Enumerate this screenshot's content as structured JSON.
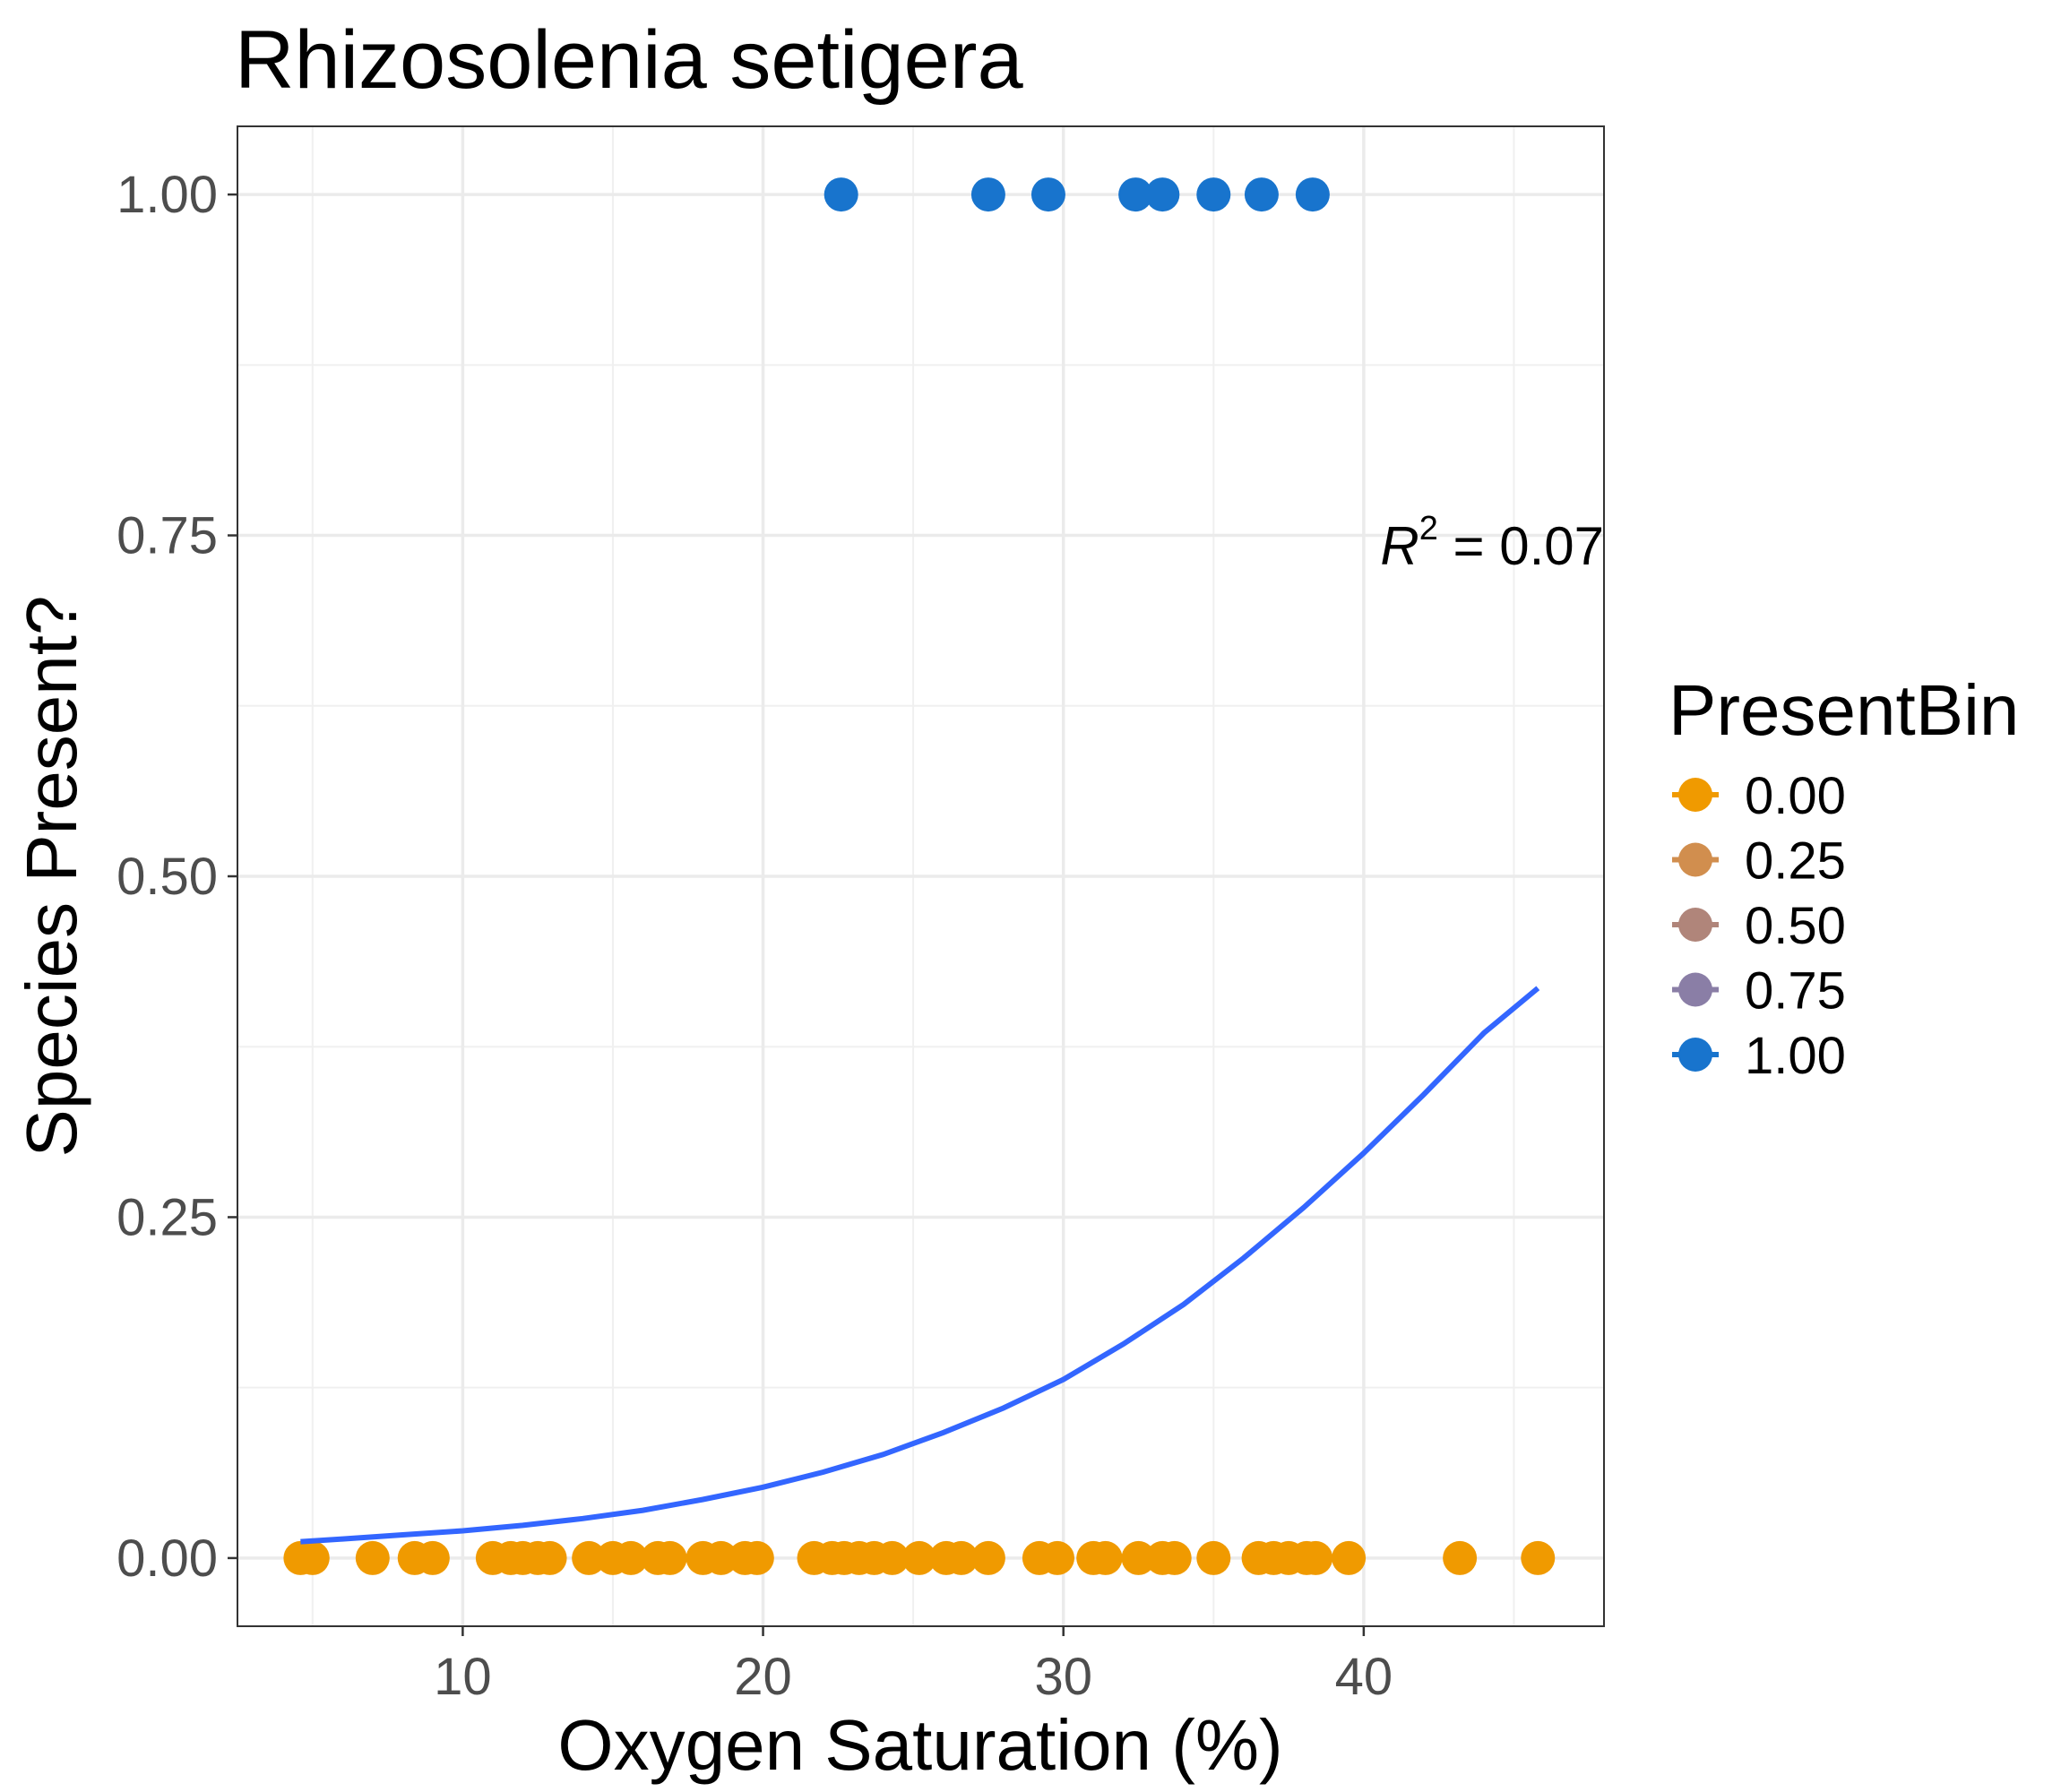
{
  "chart_data": {
    "type": "scatter",
    "title": "Rhizosolenia setigera",
    "xlabel": "Oxygen Saturation (%)",
    "ylabel": "Species Present?",
    "xlim": [
      2.5,
      48
    ],
    "ylim": [
      -0.05,
      1.05
    ],
    "x_ticks": [
      10,
      20,
      30,
      40
    ],
    "y_ticks": [
      0.0,
      0.25,
      0.5,
      0.75,
      1.0
    ],
    "x_tick_labels": [
      "10",
      "20",
      "30",
      "40"
    ],
    "y_tick_labels": [
      "0.00",
      "0.25",
      "0.50",
      "0.75",
      "1.00"
    ],
    "grid": true,
    "legend": {
      "title": "PresentBin",
      "position": "right",
      "entries": [
        {
          "label": "0.00",
          "value": 0.0,
          "color": "#f09a00"
        },
        {
          "label": "0.25",
          "value": 0.25,
          "color": "#d18e4e"
        },
        {
          "label": "0.50",
          "value": 0.5,
          "color": "#b0857a"
        },
        {
          "label": "0.75",
          "value": 0.75,
          "color": "#8a7ea6"
        },
        {
          "label": "1.00",
          "value": 1.0,
          "color": "#1874cd"
        }
      ]
    },
    "points": {
      "present": {
        "y": 1.0,
        "color": "#1874cd",
        "x": [
          22.6,
          27.5,
          29.5,
          32.4,
          33.3,
          35.0,
          36.6,
          38.3
        ]
      },
      "absent": {
        "y": 0.0,
        "color": "#f09a00",
        "x": [
          4.6,
          5.0,
          7.0,
          8.4,
          9.0,
          11.0,
          11.6,
          12.0,
          12.5,
          12.9,
          14.2,
          15.0,
          15.6,
          16.5,
          16.9,
          18.0,
          18.6,
          19.4,
          19.8,
          21.7,
          22.3,
          22.7,
          23.2,
          23.7,
          24.3,
          25.2,
          26.1,
          26.6,
          27.5,
          29.2,
          29.8,
          31.0,
          31.4,
          32.5,
          33.3,
          33.7,
          35.0,
          36.5,
          37.0,
          37.5,
          38.1,
          38.4,
          39.5,
          43.2,
          45.8
        ]
      }
    },
    "fit": {
      "type": "logistic",
      "color": "#3366ff",
      "x": [
        4.6,
        6,
        8,
        10,
        12,
        14,
        16,
        18,
        20,
        22,
        24,
        26,
        28,
        30,
        32,
        34,
        36,
        38,
        40,
        42,
        44,
        45.8
      ],
      "y": [
        0.012,
        0.014,
        0.017,
        0.02,
        0.024,
        0.029,
        0.035,
        0.043,
        0.052,
        0.063,
        0.076,
        0.092,
        0.11,
        0.131,
        0.157,
        0.186,
        0.22,
        0.257,
        0.297,
        0.34,
        0.385,
        0.418
      ]
    },
    "annotation": {
      "symbol": "R",
      "exponent": "2",
      "text": " = 0.07"
    }
  }
}
